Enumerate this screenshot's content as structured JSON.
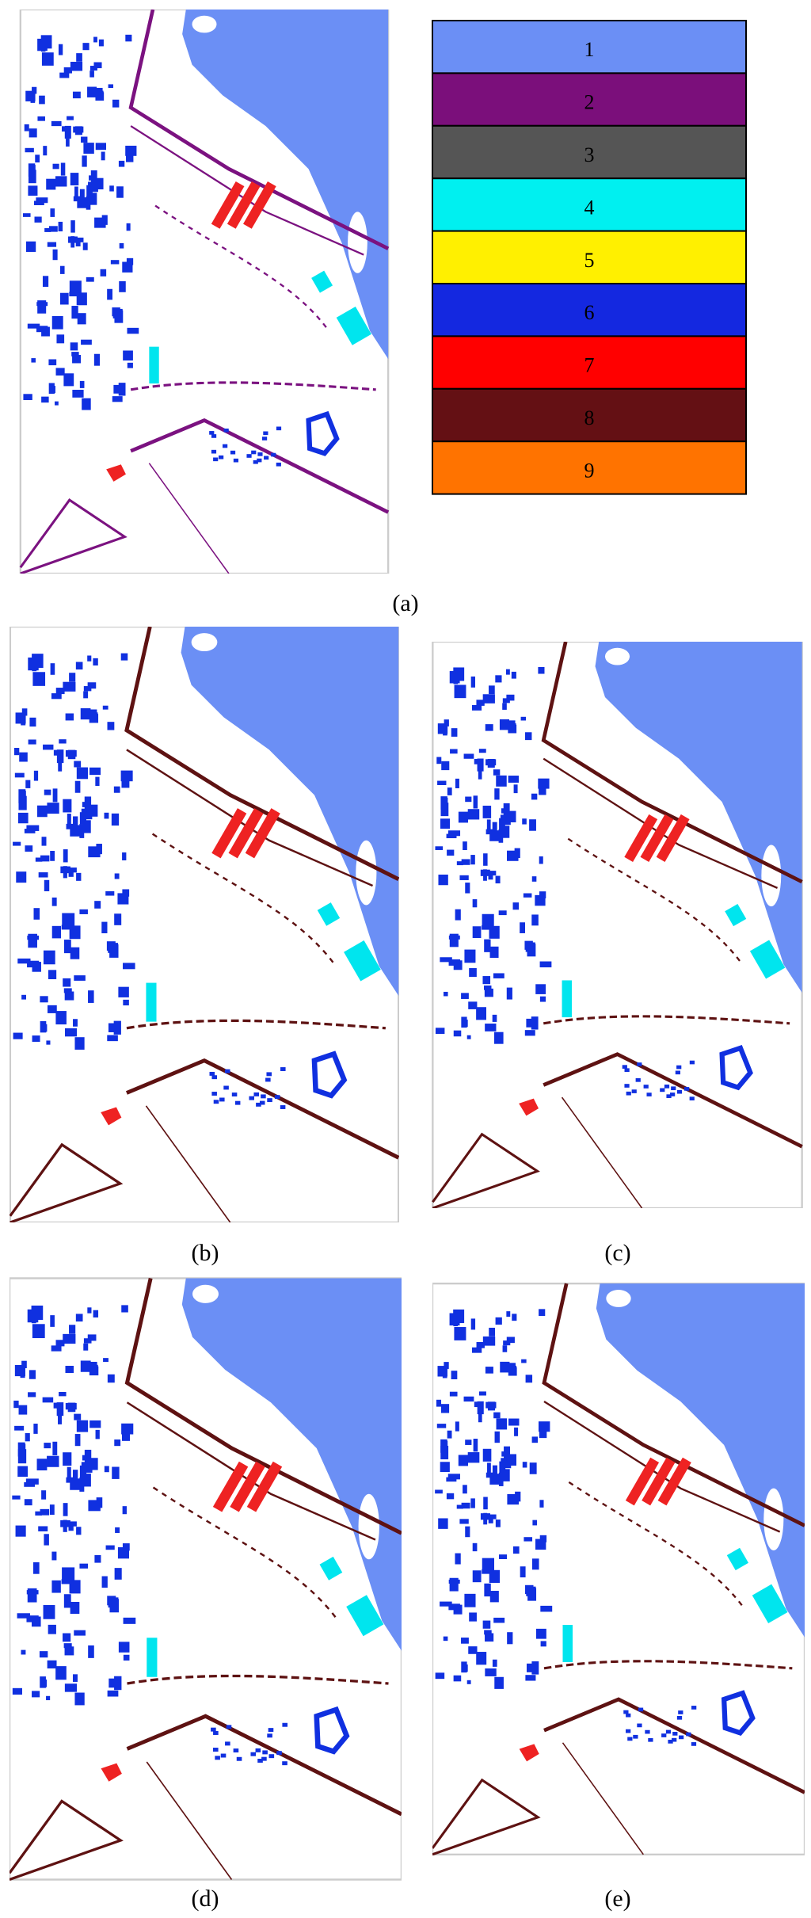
{
  "legend": [
    {
      "label": "1",
      "color": "#6b8ff5"
    },
    {
      "label": "2",
      "color": "#7b0f7b"
    },
    {
      "label": "3",
      "color": "#555555"
    },
    {
      "label": "4",
      "color": "#00f0f0"
    },
    {
      "label": "5",
      "color": "#fff000"
    },
    {
      "label": "6",
      "color": "#1428e0"
    },
    {
      "label": "7",
      "color": "#ff0000"
    },
    {
      "label": "8",
      "color": "#641014"
    },
    {
      "label": "9",
      "color": "#ff7300"
    }
  ],
  "panels": [
    {
      "label": "(a)"
    },
    {
      "label": "(b)"
    },
    {
      "label": "(c)"
    },
    {
      "label": "(d)"
    },
    {
      "label": "(e)"
    }
  ]
}
